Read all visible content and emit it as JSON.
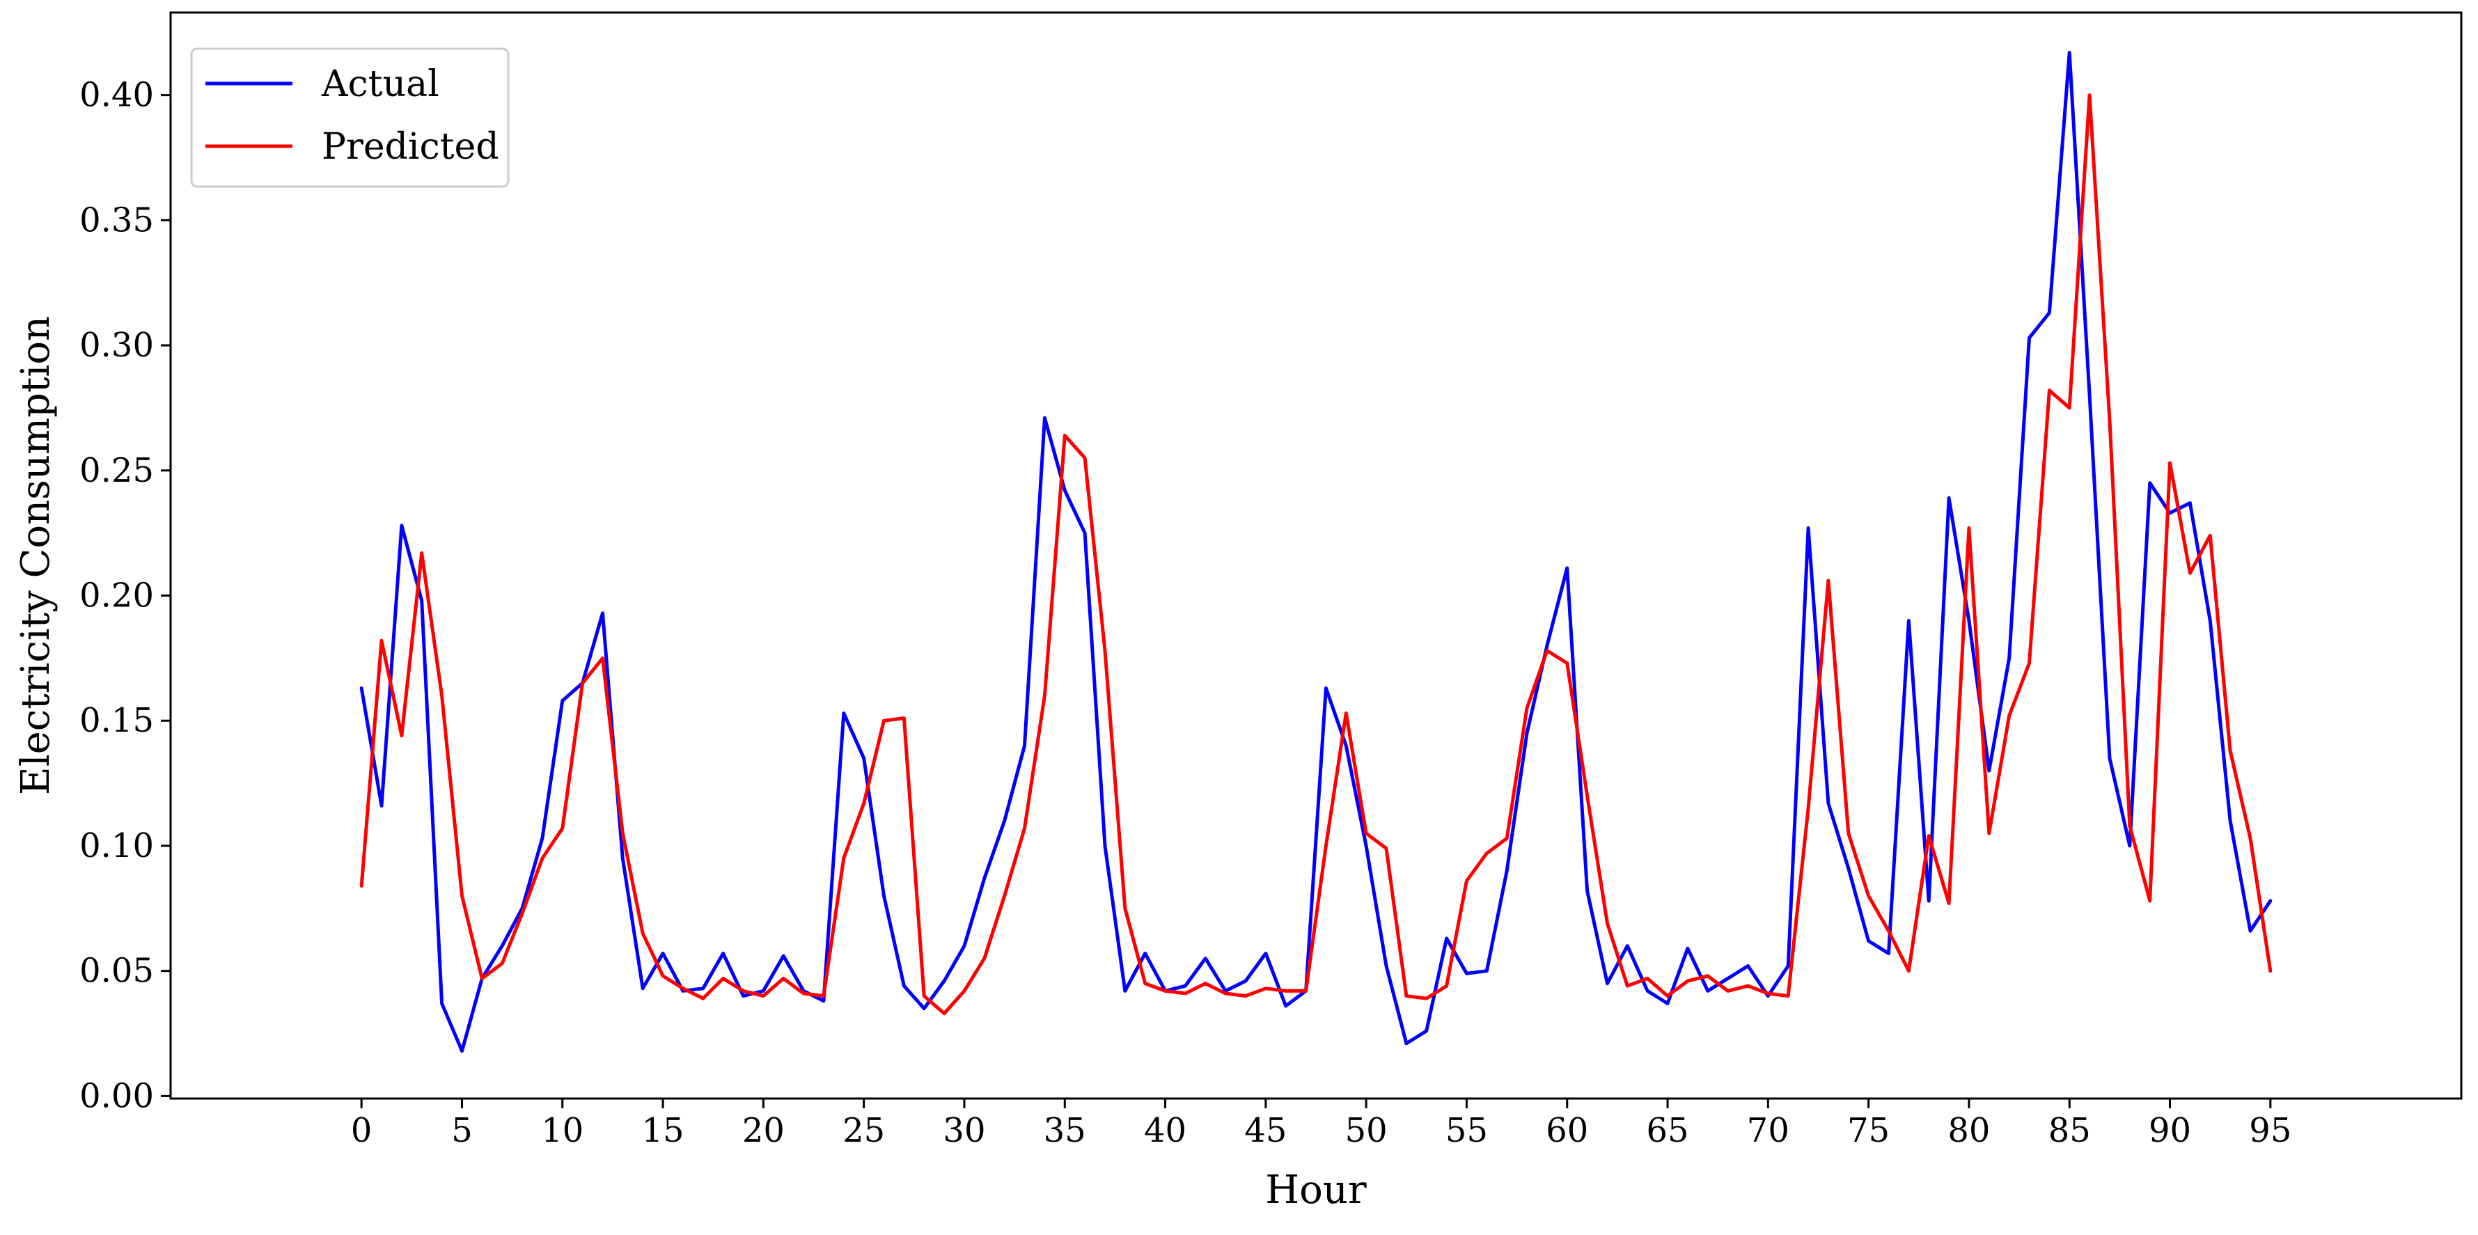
{
  "chart_data": {
    "type": "line",
    "title": "",
    "xlabel": "Hour",
    "ylabel": "Electricity Consumption",
    "xlim": [
      -9.5,
      104.5
    ],
    "ylim": [
      -0.001,
      0.433
    ],
    "xticks": [
      0,
      5,
      10,
      15,
      20,
      25,
      30,
      35,
      40,
      45,
      50,
      55,
      60,
      65,
      70,
      75,
      80,
      85,
      90,
      95
    ],
    "xtick_labels": [
      "0",
      "5",
      "10",
      "15",
      "20",
      "25",
      "30",
      "35",
      "40",
      "45",
      "50",
      "55",
      "60",
      "65",
      "70",
      "75",
      "80",
      "85",
      "90",
      "95"
    ],
    "yticks": [
      0.0,
      0.05,
      0.1,
      0.15,
      0.2,
      0.25,
      0.3,
      0.35,
      0.4
    ],
    "ytick_labels": [
      "0.00",
      "0.05",
      "0.10",
      "0.15",
      "0.20",
      "0.25",
      "0.30",
      "0.35",
      "0.40"
    ],
    "grid": false,
    "legend_position": "top-left",
    "series": [
      {
        "name": "Actual",
        "color": "#0000ff",
        "values": [
          0.163,
          0.116,
          0.228,
          0.198,
          0.037,
          0.018,
          0.047,
          0.06,
          0.075,
          0.103,
          0.158,
          0.165,
          0.193,
          0.095,
          0.043,
          0.057,
          0.042,
          0.043,
          0.057,
          0.04,
          0.042,
          0.056,
          0.042,
          0.038,
          0.153,
          0.135,
          0.08,
          0.044,
          0.035,
          0.046,
          0.06,
          0.087,
          0.11,
          0.14,
          0.271,
          0.242,
          0.225,
          0.1,
          0.042,
          0.057,
          0.042,
          0.044,
          0.055,
          0.042,
          0.046,
          0.057,
          0.036,
          0.042,
          0.163,
          0.14,
          0.1,
          0.052,
          0.021,
          0.026,
          0.063,
          0.049,
          0.05,
          0.09,
          0.145,
          0.18,
          0.211,
          0.082,
          0.045,
          0.06,
          0.042,
          0.037,
          0.059,
          0.042,
          0.047,
          0.052,
          0.04,
          0.052,
          0.227,
          0.117,
          0.091,
          0.062,
          0.057,
          0.19,
          0.078,
          0.239,
          0.19,
          0.13,
          0.175,
          0.303,
          0.313,
          0.417,
          0.28,
          0.135,
          0.1,
          0.245,
          0.233,
          0.237,
          0.19,
          0.11,
          0.066,
          0.078
        ]
      },
      {
        "name": "Predicted",
        "color": "#ff0000",
        "values": [
          0.084,
          0.182,
          0.144,
          0.217,
          0.16,
          0.08,
          0.047,
          0.053,
          0.073,
          0.095,
          0.107,
          0.165,
          0.175,
          0.105,
          0.065,
          0.048,
          0.043,
          0.039,
          0.047,
          0.042,
          0.04,
          0.047,
          0.041,
          0.04,
          0.095,
          0.117,
          0.15,
          0.151,
          0.04,
          0.033,
          0.042,
          0.055,
          0.08,
          0.107,
          0.16,
          0.264,
          0.255,
          0.178,
          0.075,
          0.045,
          0.042,
          0.041,
          0.045,
          0.041,
          0.04,
          0.043,
          0.042,
          0.042,
          0.1,
          0.153,
          0.105,
          0.099,
          0.04,
          0.039,
          0.044,
          0.086,
          0.097,
          0.103,
          0.155,
          0.178,
          0.173,
          0.12,
          0.069,
          0.044,
          0.047,
          0.04,
          0.046,
          0.048,
          0.042,
          0.044,
          0.041,
          0.04,
          0.115,
          0.206,
          0.105,
          0.08,
          0.066,
          0.05,
          0.104,
          0.077,
          0.227,
          0.105,
          0.152,
          0.173,
          0.282,
          0.275,
          0.4,
          0.27,
          0.108,
          0.078,
          0.253,
          0.209,
          0.224,
          0.138,
          0.103,
          0.05
        ]
      }
    ]
  }
}
